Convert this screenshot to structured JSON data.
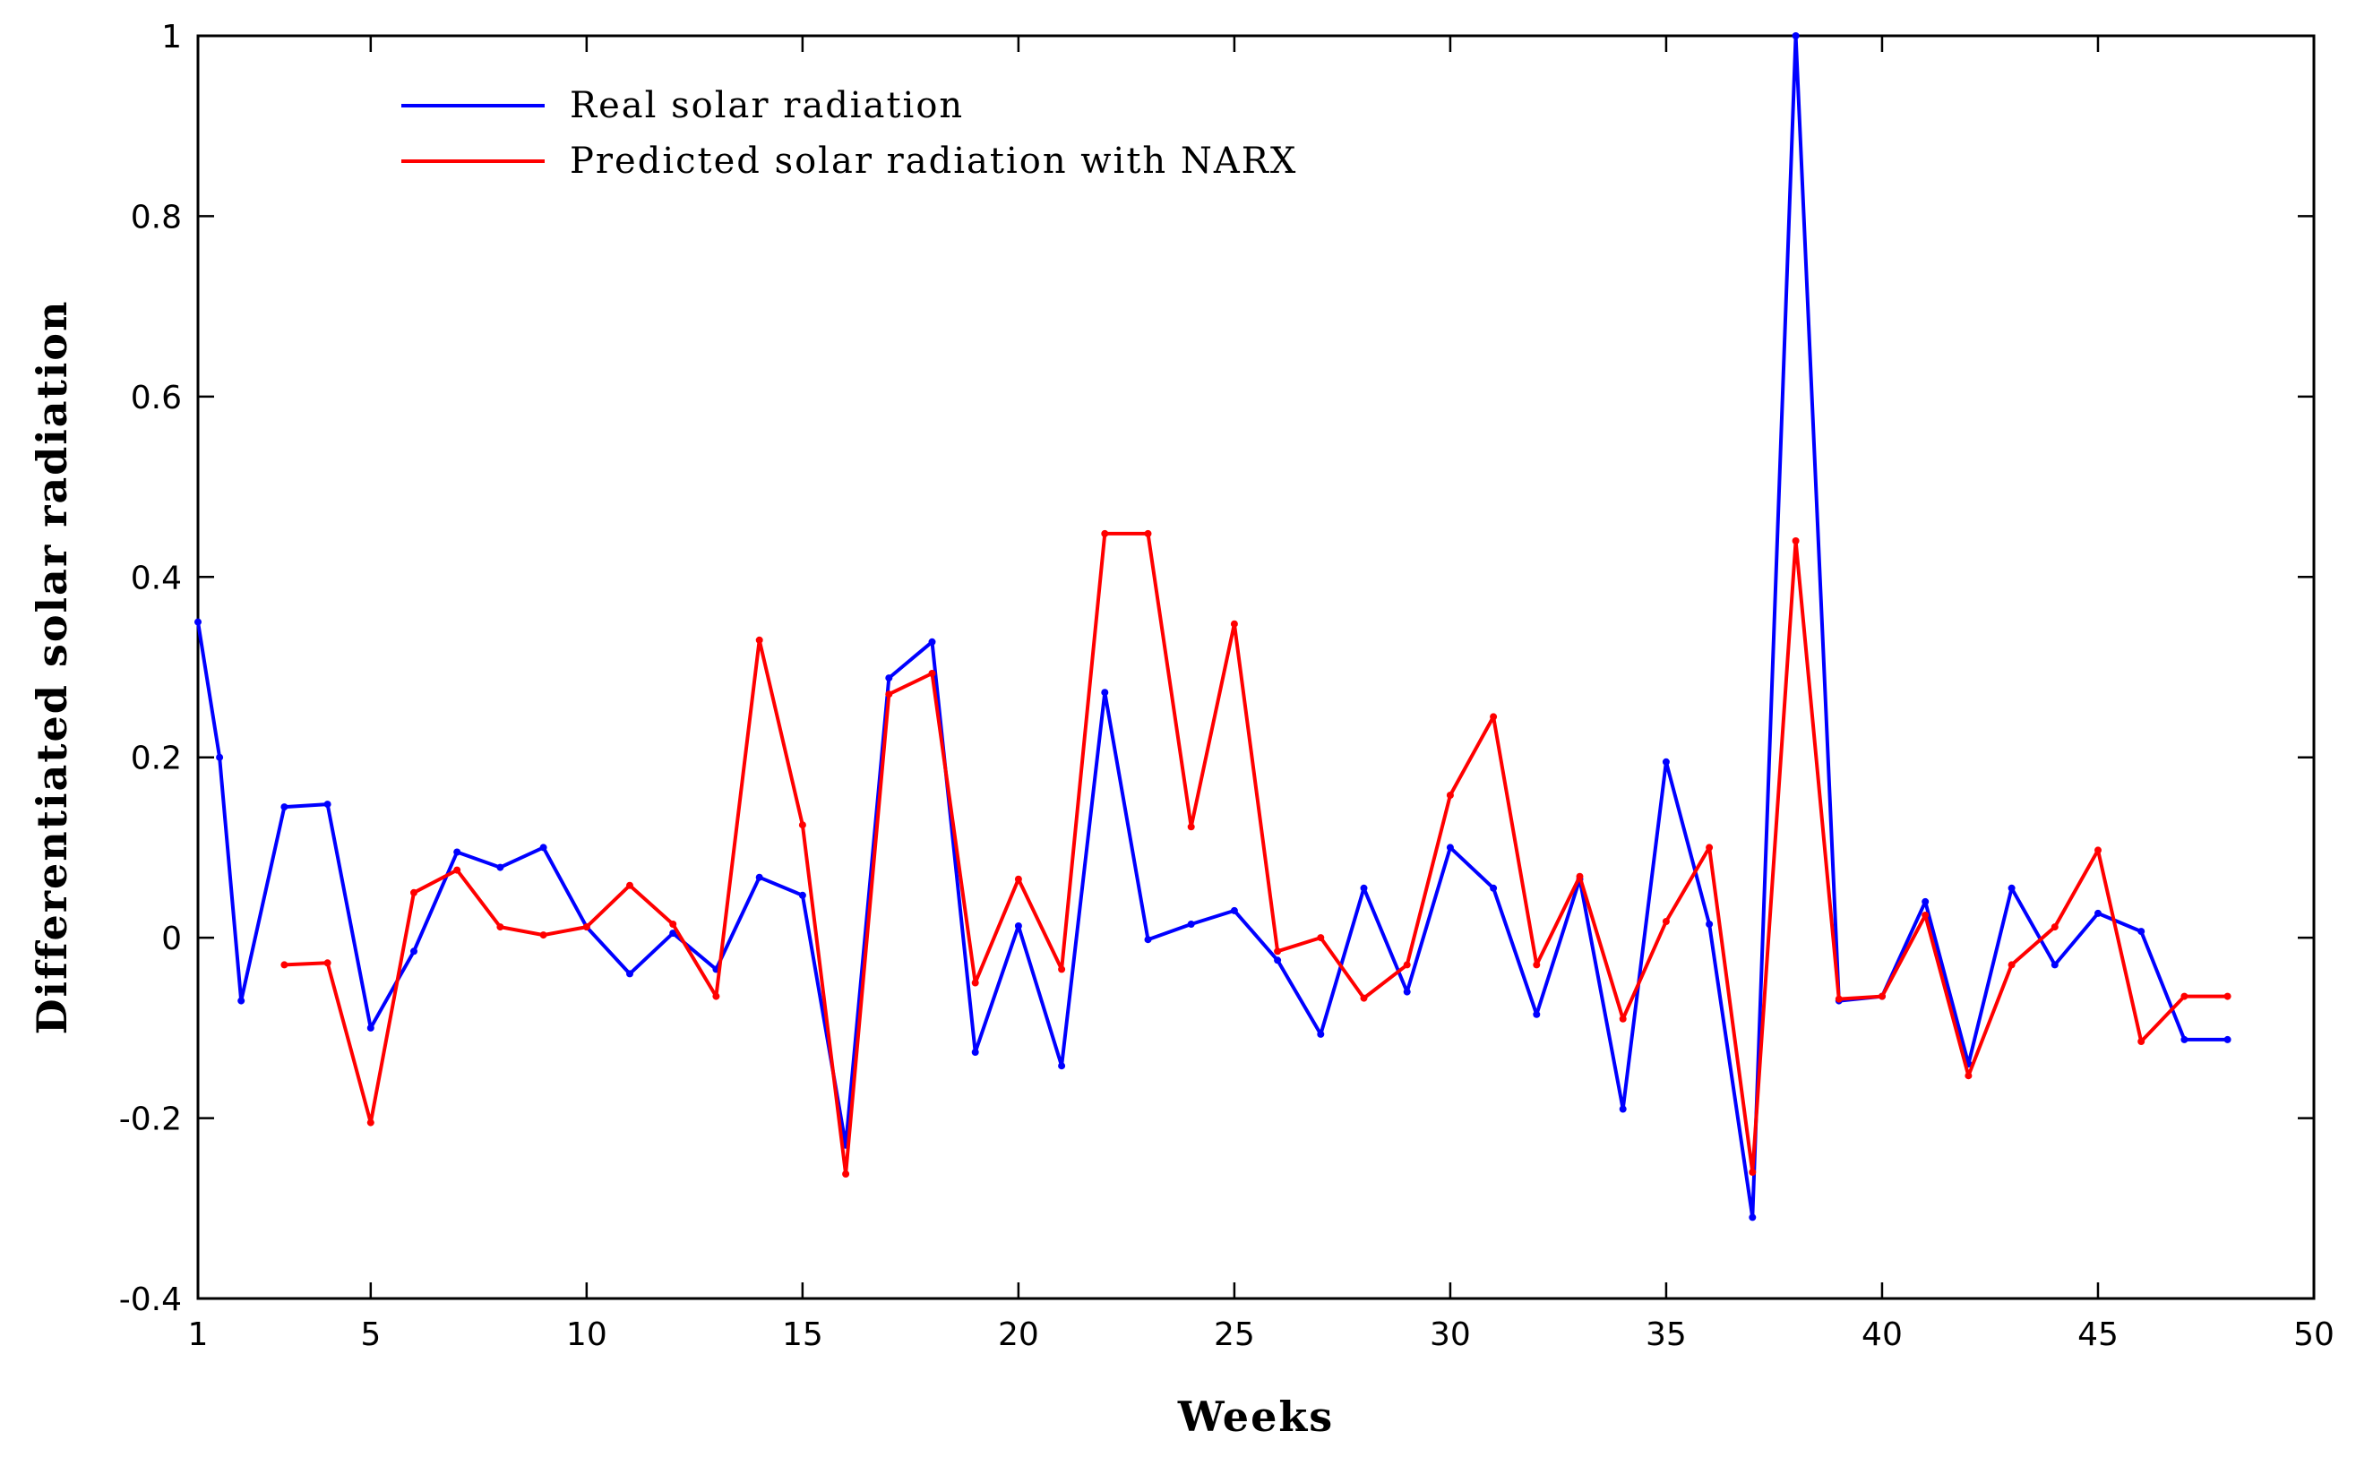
{
  "chart_data": {
    "type": "line",
    "title": "",
    "xlabel": "Weeks",
    "ylabel": "Differentiated solar radiation",
    "xlim": [
      1,
      50
    ],
    "ylim": [
      -0.4,
      1
    ],
    "x_ticks": [
      1,
      5,
      10,
      15,
      20,
      25,
      30,
      35,
      40,
      45,
      50
    ],
    "x_tick_labels": [
      "1",
      "5",
      "10",
      "15",
      "20",
      "25",
      "30",
      "35",
      "40",
      "45",
      "50"
    ],
    "y_ticks": [
      -0.4,
      -0.2,
      0,
      0.2,
      0.4,
      0.6,
      0.8,
      1
    ],
    "y_tick_labels": [
      "-0.4",
      "-0.2",
      "0",
      "0.2",
      "0.4",
      "0.6",
      "0.8",
      "1"
    ],
    "grid": false,
    "legend_position": "top-left",
    "series": [
      {
        "name": "Real solar radiation",
        "color": "#0000ff",
        "x": [
          1,
          1.5,
          2,
          3,
          4,
          5,
          6,
          7,
          8,
          9,
          10,
          11,
          12,
          13,
          14,
          15,
          16,
          17,
          18,
          19,
          20,
          21,
          22,
          23,
          24,
          25,
          26,
          27,
          28,
          29,
          30,
          31,
          32,
          33,
          34,
          35,
          36,
          37,
          38,
          39,
          40,
          41,
          42,
          43,
          44,
          45,
          46,
          47,
          48
        ],
        "values": [
          0.35,
          0.2,
          -0.07,
          0.145,
          0.148,
          -0.1,
          -0.015,
          0.095,
          0.078,
          0.1,
          0.012,
          -0.04,
          0.005,
          -0.035,
          0.067,
          0.047,
          -0.23,
          0.288,
          0.328,
          -0.127,
          0.013,
          -0.142,
          0.272,
          -0.002,
          0.015,
          0.03,
          -0.025,
          -0.107,
          0.055,
          -0.06,
          0.1,
          0.055,
          -0.085,
          0.065,
          -0.19,
          0.195,
          0.015,
          -0.31,
          1.0,
          -0.07,
          -0.065,
          0.04,
          -0.14,
          0.055,
          -0.03,
          0.027,
          0.007,
          -0.113,
          -0.113
        ]
      },
      {
        "name": "Predicted solar radiation with NARX",
        "color": "#ff0000",
        "x": [
          3,
          4,
          5,
          6,
          7,
          8,
          9,
          10,
          11,
          12,
          13,
          14,
          15,
          16,
          17,
          18,
          19,
          20,
          21,
          22,
          23,
          24,
          25,
          26,
          27,
          28,
          29,
          30,
          31,
          32,
          33,
          34,
          35,
          36,
          37,
          38,
          39,
          40,
          41,
          42,
          43,
          44,
          45,
          46,
          47,
          48
        ],
        "values": [
          -0.03,
          -0.028,
          -0.205,
          0.05,
          0.075,
          0.012,
          0.003,
          0.012,
          0.058,
          0.015,
          -0.065,
          0.33,
          0.125,
          -0.262,
          0.27,
          0.293,
          -0.05,
          0.065,
          -0.035,
          0.448,
          0.448,
          0.123,
          0.348,
          -0.015,
          0.0,
          -0.067,
          -0.03,
          0.158,
          0.245,
          -0.03,
          0.068,
          -0.09,
          0.018,
          0.1,
          -0.26,
          0.44,
          -0.068,
          -0.065,
          0.025,
          -0.153,
          -0.03,
          0.012,
          0.097,
          -0.115,
          -0.065,
          -0.065
        ]
      }
    ]
  }
}
